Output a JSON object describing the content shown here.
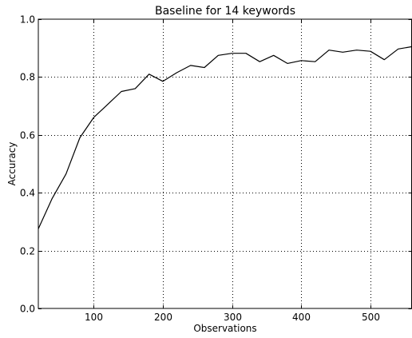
{
  "chart_data": {
    "type": "line",
    "title": "Baseline for 14 keywords",
    "xlabel": "Observations",
    "ylabel": "Accuracy",
    "xlim": [
      20,
      560
    ],
    "ylim": [
      0.0,
      1.0
    ],
    "xticks": [
      100,
      200,
      300,
      400,
      500
    ],
    "yticks": [
      0.0,
      0.2,
      0.4,
      0.6,
      0.8,
      1.0
    ],
    "xtick_labels": [
      "100",
      "200",
      "300",
      "400",
      "500"
    ],
    "ytick_labels": [
      "0.0",
      "0.2",
      "0.4",
      "0.6",
      "0.8",
      "1.0"
    ],
    "grid": true,
    "grid_style": "dotted",
    "line_color": "#000000",
    "series": [
      {
        "x": [
          20,
          40,
          60,
          80,
          100,
          120,
          140,
          160,
          180,
          200,
          220,
          240,
          260,
          280,
          300,
          320,
          340,
          360,
          380,
          400,
          420,
          440,
          460,
          480,
          500,
          520,
          540,
          560
        ],
        "y": [
          0.275,
          0.38,
          0.465,
          0.59,
          0.66,
          0.705,
          0.75,
          0.76,
          0.81,
          0.785,
          0.815,
          0.84,
          0.833,
          0.875,
          0.882,
          0.882,
          0.853,
          0.875,
          0.847,
          0.857,
          0.853,
          0.893,
          0.886,
          0.893,
          0.889,
          0.86,
          0.897,
          0.905
        ]
      }
    ]
  }
}
